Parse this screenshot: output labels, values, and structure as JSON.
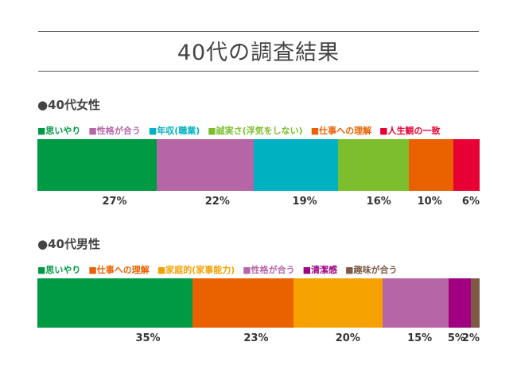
{
  "title": "40代の調査結果",
  "chart_data": [
    {
      "type": "bar",
      "stacked": true,
      "title": "●40代女性",
      "categories": [
        "思いやり",
        "性格が合う",
        "年収(職業)",
        "誠実さ(浮気をしない)",
        "仕事への理解",
        "人生観の一致"
      ],
      "values": [
        27,
        22,
        19,
        16,
        10,
        6
      ],
      "labels": [
        "27%",
        "22%",
        "19%",
        "16%",
        "10%",
        "6%"
      ],
      "colors": [
        "#009944",
        "#b665a6",
        "#00b1c1",
        "#7dbe2e",
        "#ea6100",
        "#e60033"
      ]
    },
    {
      "type": "bar",
      "stacked": true,
      "title": "●40代男性",
      "categories": [
        "思いやり",
        "仕事への理解",
        "家庭的(家事能力)",
        "性格が合う",
        "清潔感",
        "趣味が合う"
      ],
      "values": [
        35,
        23,
        20,
        15,
        5,
        2
      ],
      "labels": [
        "35%",
        "23%",
        "20%",
        "15%",
        "5%",
        "2%"
      ],
      "colors": [
        "#009944",
        "#ea6100",
        "#f5a200",
        "#b665a6",
        "#a0007f",
        "#7d5a45"
      ]
    }
  ]
}
